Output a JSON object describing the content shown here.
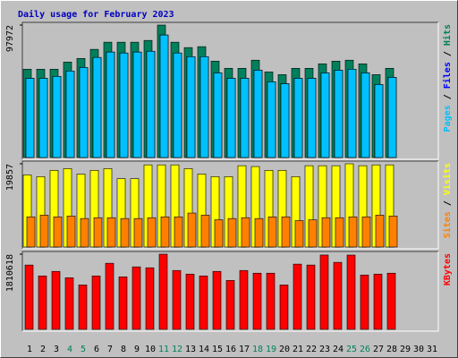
{
  "title": "Daily usage for February 2023",
  "legend_separator": " / ",
  "chart_data": [
    {
      "type": "bar",
      "ylim": [
        0,
        97972
      ],
      "yticks": [
        97972
      ],
      "series": [
        {
          "name": "Pages",
          "color": "#00C0FF",
          "values": [
            58600,
            58600,
            60000,
            64000,
            66600,
            74000,
            78000,
            77300,
            78000,
            78600,
            90600,
            77300,
            74600,
            74600,
            62600,
            58600,
            58600,
            64600,
            56000,
            54600,
            58600,
            58600,
            62600,
            64600,
            65300,
            62600,
            54000,
            59300,
            null,
            null,
            null
          ]
        },
        {
          "name": "Files",
          "color": "#0000FF",
          "values": [
            58600,
            58600,
            60000,
            64000,
            66600,
            74000,
            78000,
            77300,
            78000,
            78600,
            90600,
            77300,
            74600,
            74600,
            62600,
            58600,
            58600,
            64600,
            56000,
            54600,
            58600,
            58600,
            62600,
            64600,
            65300,
            62600,
            54000,
            59300,
            null,
            null,
            null
          ]
        },
        {
          "name": "Hits",
          "color": "#00805C",
          "values": [
            65300,
            65300,
            65300,
            70600,
            73300,
            80000,
            85300,
            85300,
            85300,
            86600,
            97972,
            85300,
            81300,
            82000,
            71300,
            66000,
            66000,
            72000,
            63300,
            61300,
            66000,
            66000,
            69300,
            71300,
            72000,
            69300,
            61300,
            66000,
            null,
            null,
            null
          ]
        }
      ]
    },
    {
      "type": "bar",
      "ylim": [
        0,
        19857
      ],
      "yticks": [
        19857
      ],
      "series": [
        {
          "name": "Sites",
          "color": "#FF8000",
          "values": [
            7200,
            7600,
            7200,
            7400,
            6800,
            7000,
            7000,
            6800,
            6800,
            7000,
            7200,
            7200,
            8100,
            7600,
            6500,
            6800,
            7000,
            6800,
            7200,
            7200,
            6300,
            6500,
            7000,
            7000,
            7200,
            7200,
            7600,
            7400,
            null,
            null,
            null
          ]
        },
        {
          "name": "Visits",
          "color": "#FFFF00",
          "values": [
            17200,
            16800,
            18300,
            18700,
            17400,
            18300,
            18700,
            16300,
            16300,
            19600,
            19600,
            19600,
            18700,
            17400,
            16800,
            16800,
            19400,
            19200,
            18300,
            18300,
            16800,
            19400,
            19400,
            19400,
            19857,
            19400,
            19600,
            19600,
            null,
            null,
            null
          ]
        }
      ]
    },
    {
      "type": "bar",
      "ylim": [
        0,
        1810618
      ],
      "yticks": [
        1810618
      ],
      "categories": [
        "1",
        "2",
        "3",
        "4",
        "5",
        "6",
        "7",
        "8",
        "9",
        "10",
        "11",
        "12",
        "13",
        "14",
        "15",
        "16",
        "17",
        "18",
        "19",
        "20",
        "21",
        "22",
        "23",
        "24",
        "25",
        "26",
        "27",
        "28",
        "29",
        "30",
        "31"
      ],
      "highlight": [
        "4",
        "5",
        "11",
        "12",
        "18",
        "19",
        "25",
        "26"
      ],
      "highlight_color": "#00805C",
      "label_color": "#000000",
      "series": [
        {
          "name": "KBytes",
          "color": "#FF0000",
          "values": [
            1549000,
            1287000,
            1396000,
            1243000,
            1069000,
            1287000,
            1592000,
            1265000,
            1505000,
            1483000,
            1810618,
            1418000,
            1331000,
            1287000,
            1396000,
            1178000,
            1418000,
            1353000,
            1353000,
            1069000,
            1571000,
            1549000,
            1790000,
            1614000,
            1789000,
            1309000,
            1331000,
            1353000,
            null,
            null,
            null
          ]
        }
      ]
    }
  ]
}
